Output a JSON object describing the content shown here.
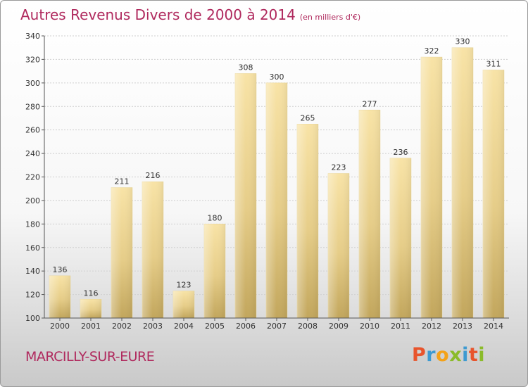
{
  "title": "Autres Revenus Divers de 2000 à 2014",
  "subtitle": "(en milliers d'€)",
  "commune": "MARCILLY-SUR-EURE",
  "logo": "Proxiti",
  "colors": {
    "title": "#b02a5e",
    "bar_light": "#f6dfa0",
    "bar_dark": "#c9ad63"
  },
  "chart_data": {
    "type": "bar",
    "categories": [
      "2000",
      "2001",
      "2002",
      "2003",
      "2004",
      "2005",
      "2006",
      "2007",
      "2008",
      "2009",
      "2010",
      "2011",
      "2012",
      "2013",
      "2014"
    ],
    "values": [
      136,
      116,
      211,
      216,
      123,
      180,
      308,
      300,
      265,
      223,
      277,
      236,
      322,
      330,
      311
    ],
    "ylim": [
      100,
      340
    ],
    "yticks": [
      100,
      120,
      140,
      160,
      180,
      200,
      220,
      240,
      260,
      280,
      300,
      320,
      340
    ],
    "grid": true
  }
}
